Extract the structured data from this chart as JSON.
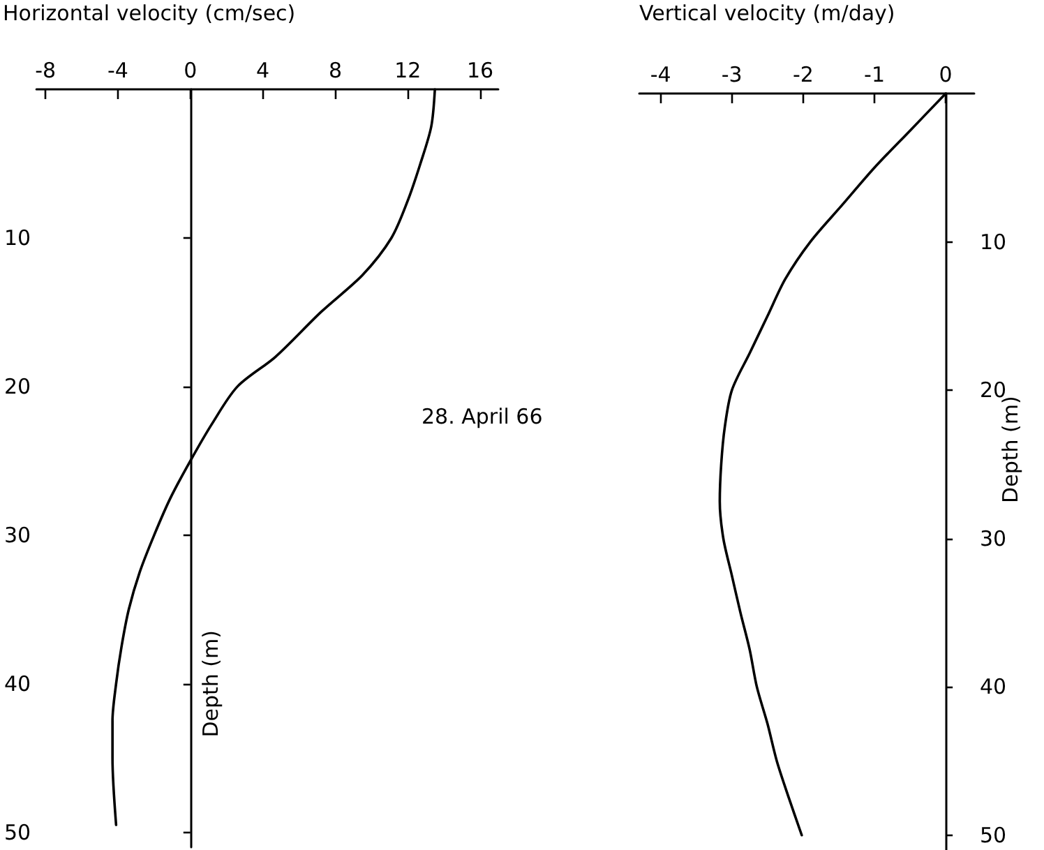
{
  "chart_data": [
    {
      "type": "line",
      "xlabel": "Horizontal velocity (cm/sec)",
      "ylabel": "Depth (m)",
      "annotations": [
        "28. April 66"
      ],
      "xlim": [
        -8.5,
        17
      ],
      "xticks": [
        -8,
        -4,
        0,
        4,
        8,
        12,
        16
      ],
      "ylim": [
        51,
        0
      ],
      "yticks": [
        10,
        20,
        30,
        40,
        50
      ],
      "marker": "none",
      "line_style": "solid",
      "series": [
        {
          "color": "#000000",
          "x": [
            13.5,
            13.3,
            12.7,
            12.0,
            11.1,
            9.5,
            7.2,
            4.7,
            2.6,
            1.2,
            0,
            -1.1,
            -2.0,
            -2.8,
            -3.4,
            -3.8,
            -4.1,
            -4.3,
            -4.3,
            -4.1
          ],
          "values": [
            0,
            2.5,
            5,
            7.5,
            10,
            12.5,
            15,
            18,
            20,
            22.5,
            25,
            27.5,
            30,
            32.5,
            35,
            37.5,
            40,
            42.5,
            45,
            49.5
          ]
        }
      ]
    },
    {
      "type": "line",
      "xlabel": "Vertical velocity (m/day)",
      "ylabel": "Depth (m)",
      "xlim": [
        -4.3,
        0.4
      ],
      "xticks": [
        -4,
        -3,
        -2,
        -1,
        0
      ],
      "ylim": [
        51,
        0
      ],
      "yticks": [
        10,
        20,
        30,
        40,
        50
      ],
      "marker": "none",
      "line_style": "solid",
      "series": [
        {
          "color": "#000000",
          "x": [
            0,
            -0.5,
            -1.0,
            -1.45,
            -1.9,
            -2.25,
            -2.5,
            -2.75,
            -3.0,
            -3.1,
            -3.15,
            -3.17,
            -3.12,
            -3.0,
            -2.88,
            -2.75,
            -2.65,
            -2.5,
            -2.37,
            -2.2,
            -2.02
          ],
          "values": [
            0,
            2.5,
            5,
            7.5,
            10,
            12.5,
            15,
            17.5,
            20,
            22.5,
            25,
            27.5,
            30,
            32.5,
            35,
            37.5,
            40,
            42.5,
            45,
            47.5,
            50
          ]
        }
      ]
    }
  ]
}
